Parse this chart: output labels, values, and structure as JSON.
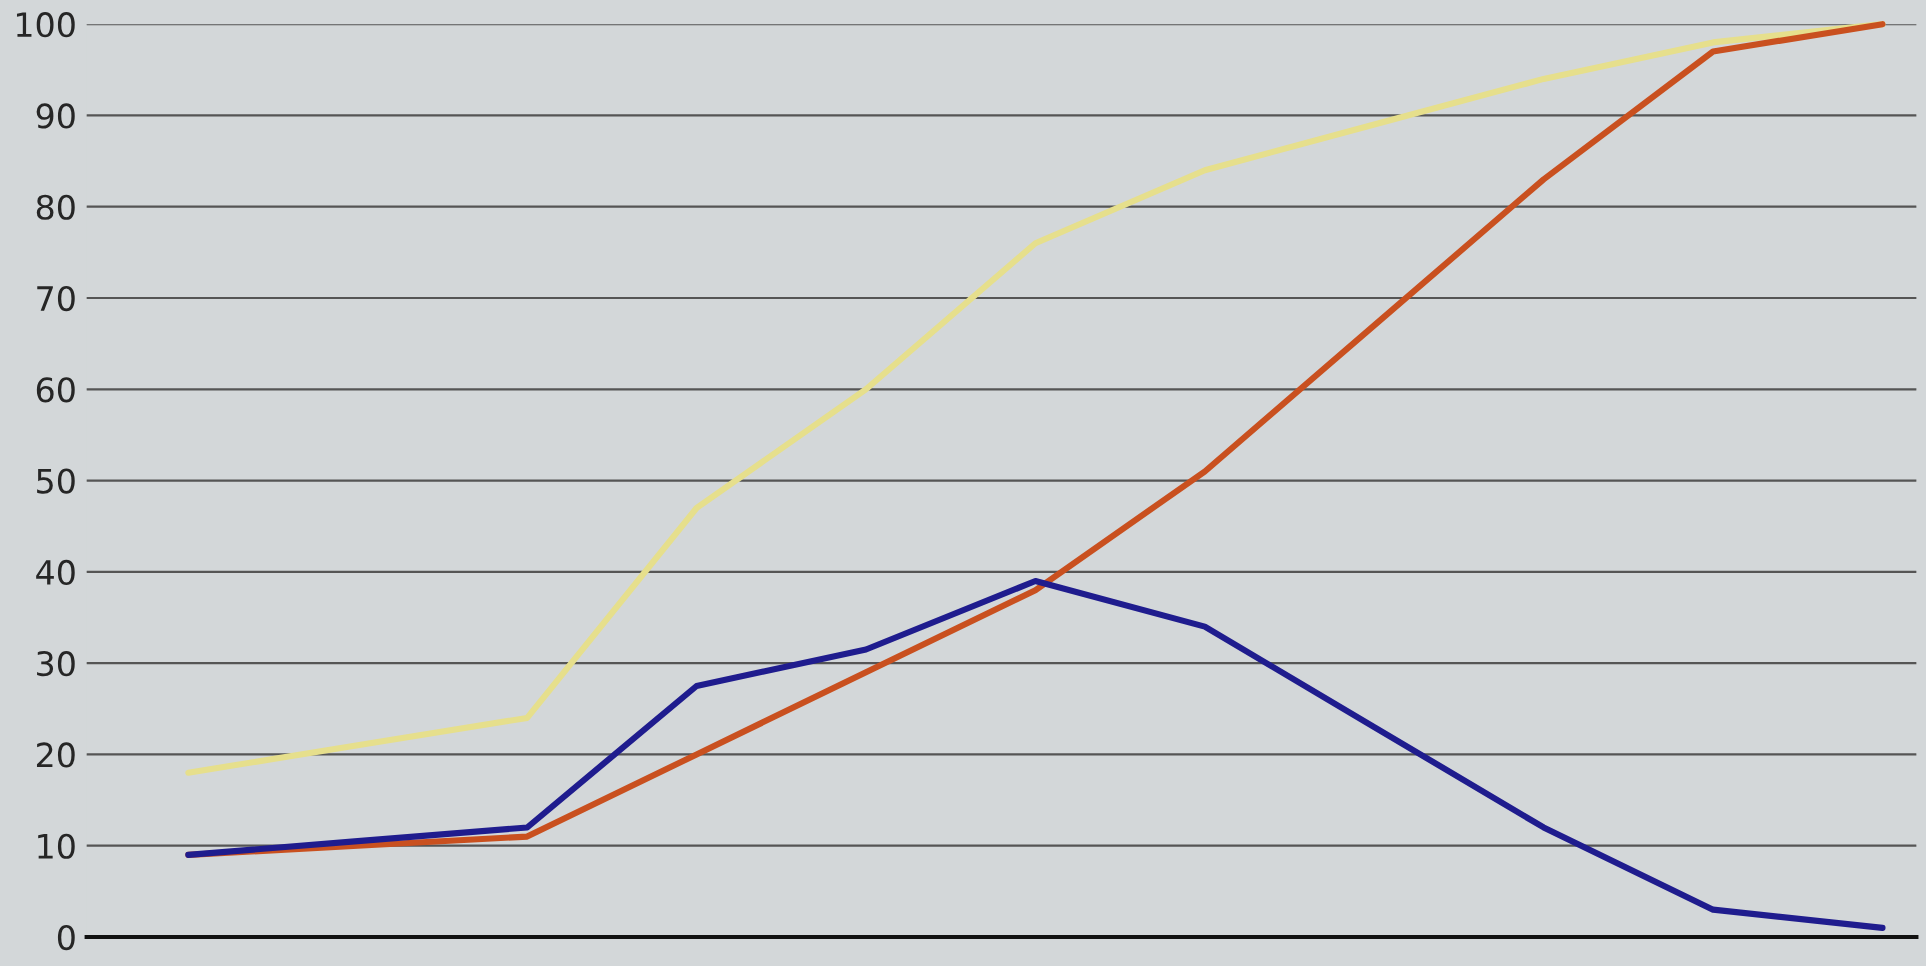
{
  "chart_data": {
    "type": "line",
    "categories": [
      null,
      null,
      null,
      null,
      null,
      null,
      null,
      null,
      null,
      null,
      null
    ],
    "series": [
      {
        "color": "#e6df8c",
        "values": [
          18,
          21,
          24,
          47,
          60,
          76,
          84,
          89,
          94,
          98,
          100
        ]
      },
      {
        "color": "#c9501f",
        "values": [
          9,
          10,
          11,
          20,
          29,
          38,
          51,
          67,
          83,
          97,
          100
        ]
      },
      {
        "color": "#1f1c8e",
        "values": [
          9,
          10.5,
          12,
          27.5,
          31.5,
          39,
          34,
          23,
          12,
          3,
          1
        ]
      }
    ],
    "ylim": [
      0,
      100
    ],
    "yticks": [
      0,
      10,
      20,
      30,
      40,
      50,
      60,
      70,
      80,
      90,
      100
    ],
    "grid": "y",
    "tick_labels": "y",
    "legend": false,
    "marker": "none",
    "line_style": "solid"
  }
}
